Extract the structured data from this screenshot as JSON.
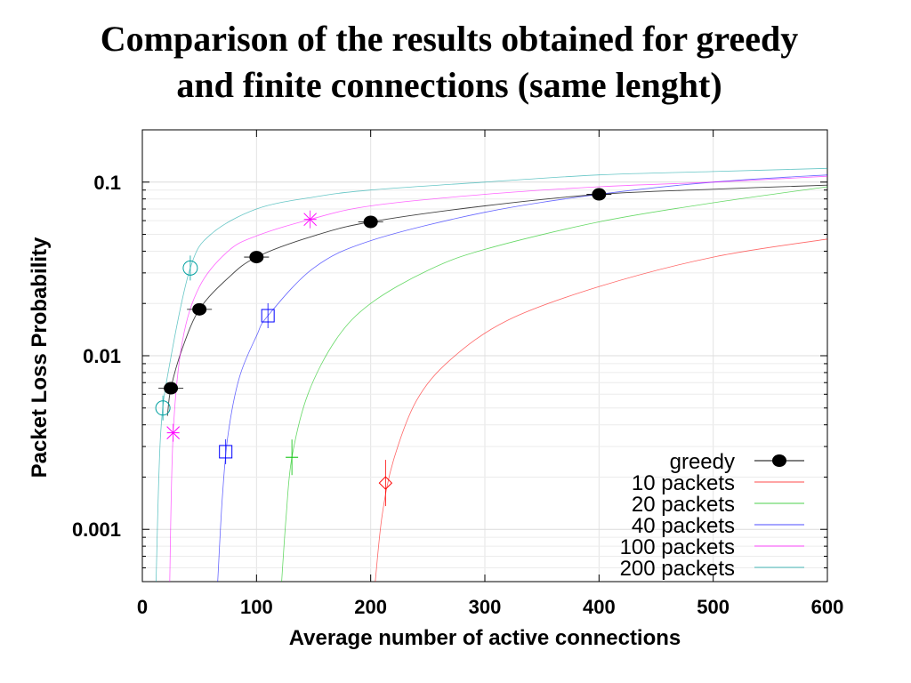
{
  "chart_data": {
    "type": "scatter",
    "title_line1": "Comparison of the results obtained for greedy",
    "title_line2": "and finite connections (same lenght)",
    "xlabel": "Average number of active connections",
    "ylabel": "Packet Loss Probability",
    "xlim": [
      0,
      600
    ],
    "ylim": [
      0.0005,
      0.2
    ],
    "yscale": "log",
    "grid": true,
    "legend_position": "bottom-right",
    "x_ticks": [
      "0",
      "100",
      "200",
      "300",
      "400",
      "500",
      "600"
    ],
    "y_ticks": [
      "0.001",
      "0.01",
      "0.1"
    ],
    "series": [
      {
        "name": "greedy",
        "color": "#000000",
        "marker": "filled-circle",
        "points": [
          [
            25,
            0.0065
          ],
          [
            50,
            0.0185
          ],
          [
            100,
            0.037
          ],
          [
            200,
            0.059
          ],
          [
            400,
            0.085
          ]
        ],
        "curve": [
          [
            22,
            0.0045
          ],
          [
            25,
            0.0065
          ],
          [
            35,
            0.011
          ],
          [
            50,
            0.0185
          ],
          [
            75,
            0.028
          ],
          [
            100,
            0.037
          ],
          [
            150,
            0.049
          ],
          [
            200,
            0.059
          ],
          [
            300,
            0.073
          ],
          [
            400,
            0.085
          ],
          [
            500,
            0.091
          ],
          [
            600,
            0.096
          ]
        ]
      },
      {
        "name": "10 packets",
        "color": "#ff0000",
        "marker": "diamond",
        "points": [
          [
            213,
            0.00185
          ]
        ],
        "curve": [
          [
            204,
            0.0005
          ],
          [
            210,
            0.0012
          ],
          [
            220,
            0.0025
          ],
          [
            240,
            0.0055
          ],
          [
            270,
            0.0095
          ],
          [
            320,
            0.016
          ],
          [
            400,
            0.025
          ],
          [
            500,
            0.037
          ],
          [
            600,
            0.047
          ]
        ]
      },
      {
        "name": "20 packets",
        "color": "#00c000",
        "marker": "plus",
        "points": [
          [
            131,
            0.0026
          ]
        ],
        "curve": [
          [
            122,
            0.0005
          ],
          [
            126,
            0.0012
          ],
          [
            131,
            0.0026
          ],
          [
            145,
            0.006
          ],
          [
            170,
            0.0125
          ],
          [
            200,
            0.02
          ],
          [
            250,
            0.031
          ],
          [
            300,
            0.041
          ],
          [
            400,
            0.059
          ],
          [
            500,
            0.076
          ],
          [
            600,
            0.094
          ]
        ]
      },
      {
        "name": "40 packets",
        "color": "#0000ff",
        "marker": "square",
        "points": [
          [
            73,
            0.0028
          ],
          [
            110,
            0.017
          ]
        ],
        "curve": [
          [
            66,
            0.0005
          ],
          [
            70,
            0.0015
          ],
          [
            75,
            0.0035
          ],
          [
            85,
            0.0075
          ],
          [
            100,
            0.013
          ],
          [
            110,
            0.017
          ],
          [
            150,
            0.032
          ],
          [
            200,
            0.046
          ],
          [
            300,
            0.067
          ],
          [
            400,
            0.085
          ],
          [
            500,
            0.1
          ],
          [
            600,
            0.11
          ]
        ]
      },
      {
        "name": "100 packets",
        "color": "#ff00ff",
        "marker": "star",
        "points": [
          [
            27,
            0.0036
          ],
          [
            147,
            0.061
          ]
        ],
        "curve": [
          [
            24,
            0.0005
          ],
          [
            27,
            0.0036
          ],
          [
            35,
            0.012
          ],
          [
            50,
            0.025
          ],
          [
            75,
            0.04
          ],
          [
            100,
            0.049
          ],
          [
            147,
            0.061
          ],
          [
            200,
            0.073
          ],
          [
            300,
            0.085
          ],
          [
            400,
            0.094
          ],
          [
            500,
            0.1
          ],
          [
            600,
            0.108
          ]
        ]
      },
      {
        "name": "200 packets",
        "color": "#00a0a0",
        "marker": "circle",
        "points": [
          [
            18,
            0.005
          ],
          [
            42,
            0.032
          ]
        ],
        "curve": [
          [
            12,
            0.0005
          ],
          [
            16,
            0.0035
          ],
          [
            24,
            0.009
          ],
          [
            42,
            0.032
          ],
          [
            60,
            0.05
          ],
          [
            100,
            0.07
          ],
          [
            150,
            0.082
          ],
          [
            200,
            0.09
          ],
          [
            300,
            0.1
          ],
          [
            400,
            0.11
          ],
          [
            500,
            0.115
          ],
          [
            600,
            0.12
          ]
        ]
      }
    ]
  }
}
